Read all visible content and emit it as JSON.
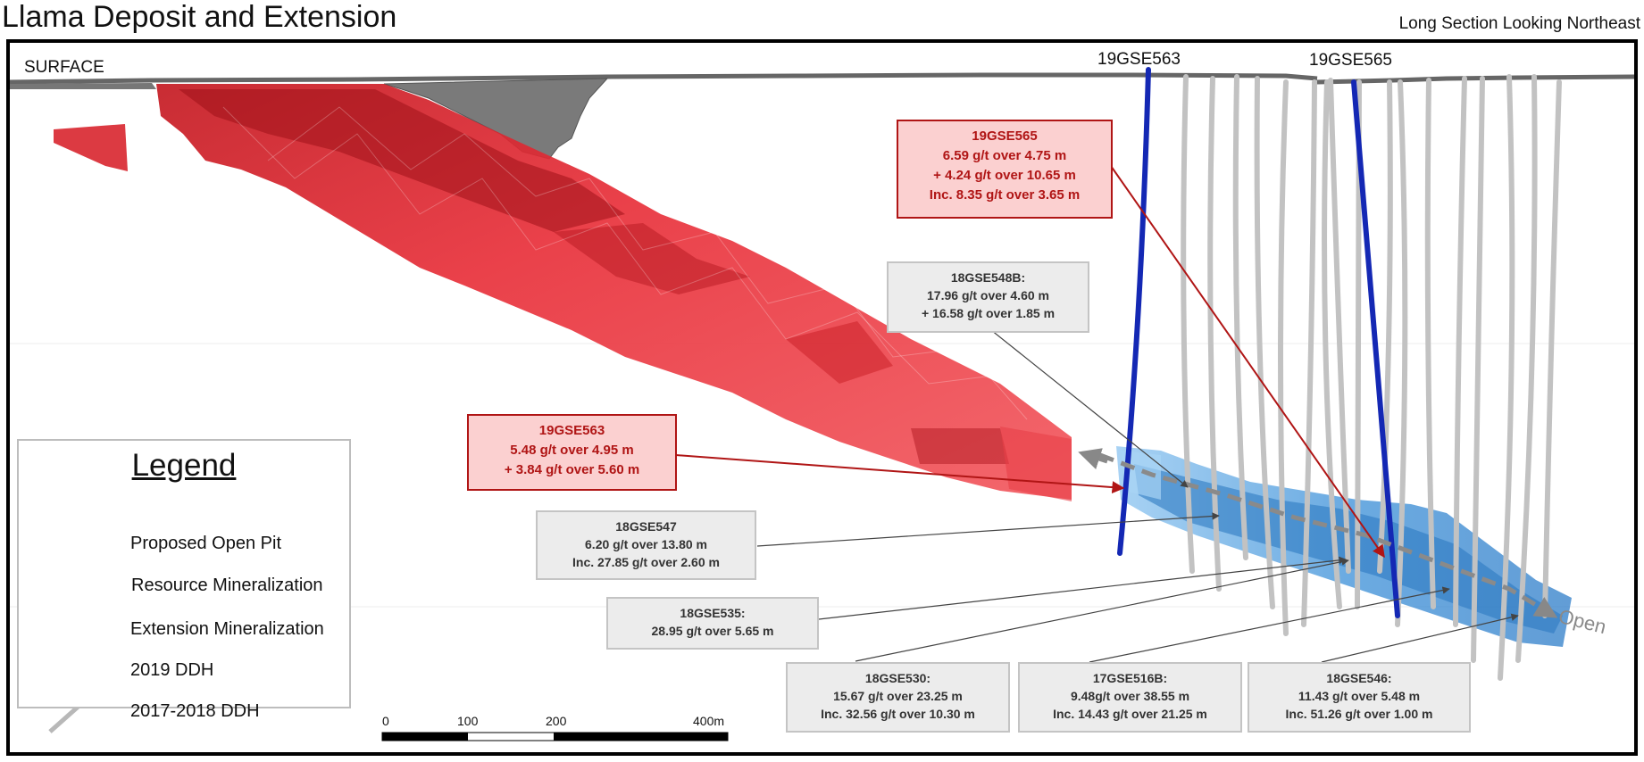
{
  "header": {
    "title": "Llama Deposit and Extension",
    "subtitle": "Long Section Looking Northeast"
  },
  "surface_label": "SURFACE",
  "hole_labels": {
    "h563": "19GSE563",
    "h565": "19GSE565"
  },
  "callouts": {
    "c565": {
      "title": "19GSE565",
      "lines": [
        "6.59 g/t over 4.75 m",
        "+ 4.24 g/t over 10.65 m",
        "Inc. 8.35 g/t over 3.65 m"
      ]
    },
    "c563": {
      "title": "19GSE563",
      "lines": [
        "5.48 g/t over 4.95 m",
        "+ 3.84 g/t over 5.60 m"
      ]
    },
    "c548b": {
      "title": "18GSE548B:",
      "lines": [
        "17.96 g/t over 4.60 m",
        "+ 16.58 g/t over 1.85 m"
      ]
    },
    "c547": {
      "title": "18GSE547",
      "lines": [
        "6.20 g/t over 13.80 m",
        "Inc. 27.85 g/t over 2.60 m"
      ]
    },
    "c535": {
      "title": "18GSE535:",
      "lines": [
        "28.95 g/t over 5.65 m"
      ]
    },
    "c530": {
      "title": "18GSE530:",
      "lines": [
        "15.67 g/t over 23.25 m",
        "Inc. 32.56 g/t over 10.30 m"
      ]
    },
    "c516b": {
      "title": "17GSE516B:",
      "lines": [
        "9.48g/t over 38.55 m",
        "Inc. 14.43 g/t over 21.25 m"
      ]
    },
    "c546": {
      "title": "18GSE546:",
      "lines": [
        "11.43 g/t over 5.48 m",
        "Inc. 51.26 g/t over 1.00 m"
      ]
    }
  },
  "open_label": "Open",
  "legend": {
    "title": "Legend",
    "items": {
      "pit": "Proposed Open Pit",
      "resource": "Resource Mineralization",
      "extension": "Extension Mineralization",
      "ddh2019": "2019 DDH",
      "ddh2017": "2017-2018 DDH"
    }
  },
  "scale_bar": {
    "ticks": {
      "t0": "0",
      "t100": "100",
      "t200": "200",
      "t400": "400m"
    }
  },
  "colors": {
    "resource": "#e8202a",
    "resource_dark": "#a81018",
    "extension": "#3a8fd8",
    "extension_light": "#8cc4f0",
    "ddh_2019": "#1428b4",
    "ddh_2017": "#c0c0c0",
    "pit": "#555555",
    "red_text": "#b01515"
  }
}
